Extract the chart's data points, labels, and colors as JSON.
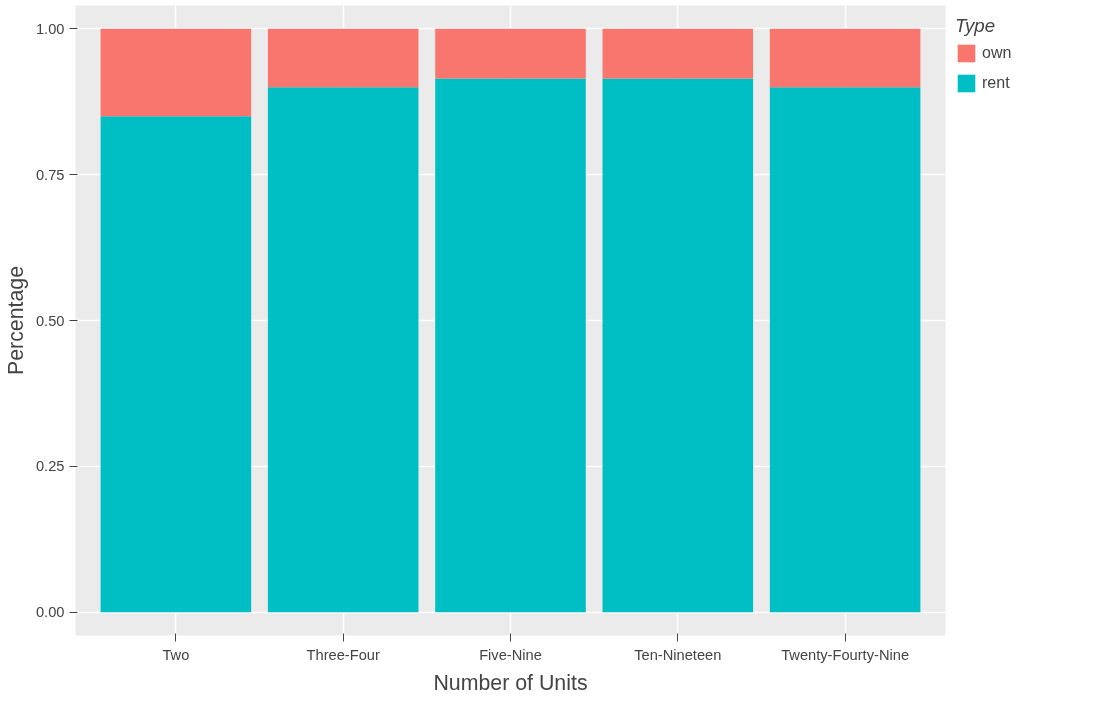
{
  "chart_data": {
    "type": "bar",
    "stacked": true,
    "xlabel": "Number of Units",
    "ylabel": "Percentage",
    "legend_title": "Type",
    "categories": [
      "Two",
      "Three-Four",
      "Five-Nine",
      "Ten-Nineteen",
      "Twenty-Fourty-Nine"
    ],
    "series": [
      {
        "name": "rent",
        "color": "#00bfc4",
        "values": [
          0.85,
          0.9,
          0.915,
          0.915,
          0.9
        ]
      },
      {
        "name": "own",
        "color": "#f8766d",
        "values": [
          0.15,
          0.1,
          0.085,
          0.085,
          0.1
        ]
      }
    ],
    "ylim": [
      -0.04,
      1.04
    ],
    "yticks": [
      {
        "value": 0,
        "label": "0.00"
      },
      {
        "value": 0.25,
        "label": "0.25"
      },
      {
        "value": 0.5,
        "label": "0.50"
      },
      {
        "value": 0.75,
        "label": "0.75"
      },
      {
        "value": 1,
        "label": "1.00"
      }
    ],
    "grid": true,
    "legend": "right"
  }
}
